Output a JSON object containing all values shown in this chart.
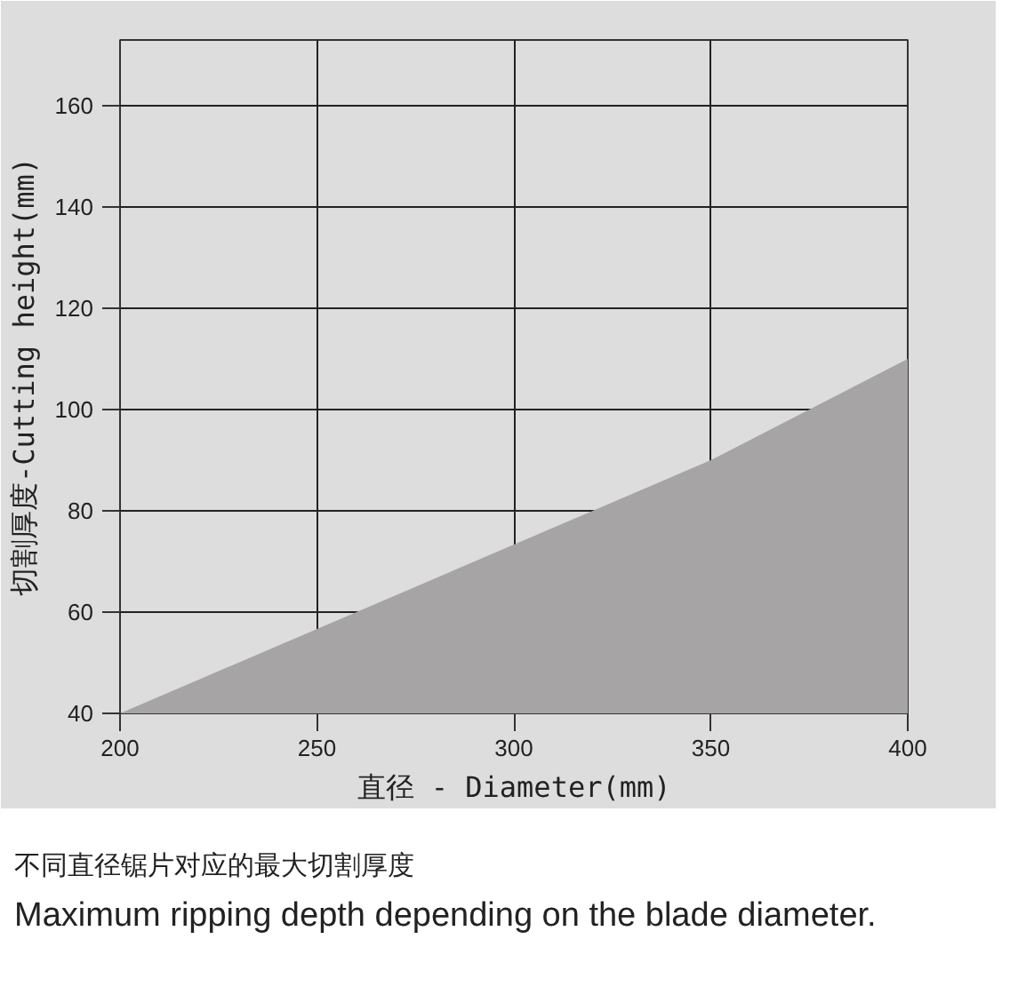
{
  "chart_data": {
    "type": "area",
    "xlabel": "直径 - Diameter(mm)",
    "ylabel": "切割厚度-Cutting height(mm)",
    "x": [
      200,
      350,
      400
    ],
    "series": [
      {
        "color": "#a6a4a5",
        "values": [
          40,
          90,
          110
        ]
      }
    ],
    "xlim": [
      200,
      400
    ],
    "ylim": [
      40,
      173
    ],
    "xticks": [
      200,
      250,
      300,
      350,
      400
    ],
    "yticks": [
      40,
      60,
      80,
      100,
      120,
      140,
      160
    ],
    "grid": true,
    "annotations": [
      "不同直径锯片对应的最大切割厚度",
      "Maximum ripping depth depending on the blade diameter."
    ]
  }
}
